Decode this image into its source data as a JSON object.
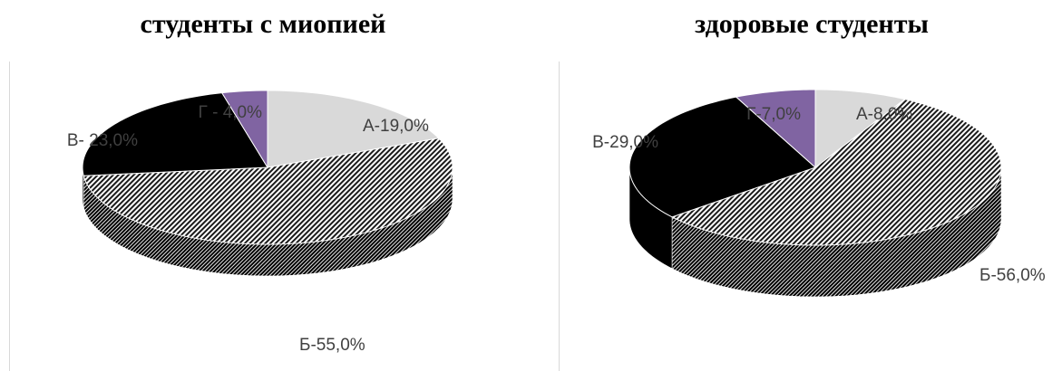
{
  "chart_data": [
    {
      "type": "pie",
      "title": "студенты с миопией",
      "slices": [
        {
          "key": "A",
          "label": "А-19,0%",
          "value": 19.0,
          "color": "#d9d9d9"
        },
        {
          "key": "B",
          "label": "Б-55,0%",
          "value": 55.0,
          "color": "#9a9a9a",
          "pattern": "hatched"
        },
        {
          "key": "V",
          "label": "В- 23,0%",
          "value": 23.0,
          "color": "#000000"
        },
        {
          "key": "G",
          "label": "Г - 4,0%",
          "value": 4.0,
          "color": "#8064a2"
        }
      ]
    },
    {
      "type": "pie",
      "title": "здоровые студенты",
      "slices": [
        {
          "key": "A",
          "label": "А-8,0%",
          "value": 8.0,
          "color": "#d9d9d9"
        },
        {
          "key": "B",
          "label": "Б-56,0%",
          "value": 56.0,
          "color": "#9a9a9a",
          "pattern": "hatched"
        },
        {
          "key": "V",
          "label": "В-29,0%",
          "value": 29.0,
          "color": "#000000"
        },
        {
          "key": "G",
          "label": "Г-7,0%",
          "value": 7.0,
          "color": "#8064a2"
        }
      ]
    }
  ]
}
